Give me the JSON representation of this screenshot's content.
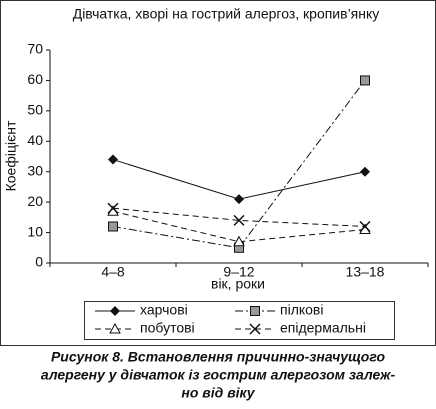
{
  "chart_data": {
    "type": "line",
    "title": "Дівчатка, хворі на гострий алергоз, кропив’янку",
    "y_label": "Коефіцієнт",
    "x_label": "вік, роки",
    "categories": [
      "4–8",
      "9–12",
      "13–18"
    ],
    "ylim": [
      0,
      70
    ],
    "yticks": [
      0,
      10,
      20,
      30,
      40,
      50,
      60,
      70
    ],
    "series": [
      {
        "name": "харчові",
        "color": "#111111",
        "marker": "diamond",
        "dash": "solid",
        "values": [
          34,
          21,
          30
        ]
      },
      {
        "name": "пілкові",
        "color": "#111111",
        "marker": "square",
        "dash": "dashdot",
        "values": [
          12,
          5,
          60
        ]
      },
      {
        "name": "побутові",
        "color": "#111111",
        "marker": "triangle",
        "dash": "dashed",
        "values": [
          17,
          7,
          11
        ]
      },
      {
        "name": "епідермальні",
        "color": "#111111",
        "marker": "x",
        "dash": "dashed",
        "values": [
          18,
          14,
          12
        ]
      }
    ],
    "caption": [
      "Рисунок 8. Встановлення причинно-значущого",
      "алергену у дівчаток із гострим алергозом залеж-",
      "но від віку"
    ]
  }
}
